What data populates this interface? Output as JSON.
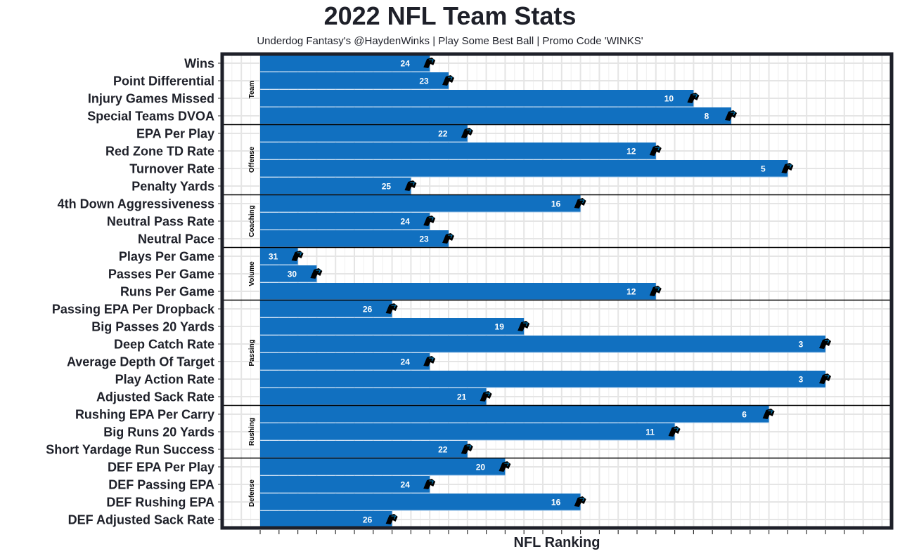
{
  "chart_data": {
    "type": "bar",
    "orientation": "horizontal",
    "title": "2022 NFL Team Stats",
    "subtitle": "Underdog Fantasy's @HaydenWinks | Play Some Best Ball | Promo Code 'WINKS'",
    "xlabel": "NFL Ranking",
    "ylabel": "",
    "bar_color": "#1170c0",
    "rank_count": 32,
    "groups": [
      {
        "name": "Team",
        "rows": [
          {
            "label": "Wins",
            "rank": 24
          },
          {
            "label": "Point Differential",
            "rank": 23
          },
          {
            "label": "Injury Games Missed",
            "rank": 10
          },
          {
            "label": "Special Teams DVOA",
            "rank": 8
          }
        ]
      },
      {
        "name": "Offense",
        "rows": [
          {
            "label": "EPA Per Play",
            "rank": 22
          },
          {
            "label": "Red Zone TD Rate",
            "rank": 12
          },
          {
            "label": "Turnover Rate",
            "rank": 5
          },
          {
            "label": "Penalty Yards",
            "rank": 25
          }
        ]
      },
      {
        "name": "Coaching",
        "rows": [
          {
            "label": "4th Down Aggressiveness",
            "rank": 16
          },
          {
            "label": "Neutral Pass Rate",
            "rank": 24
          },
          {
            "label": "Neutral Pace",
            "rank": 23
          }
        ]
      },
      {
        "name": "Volume",
        "rows": [
          {
            "label": "Plays Per Game",
            "rank": 31
          },
          {
            "label": "Passes Per Game",
            "rank": 30
          },
          {
            "label": "Runs Per Game",
            "rank": 12
          }
        ]
      },
      {
        "name": "Passing",
        "rows": [
          {
            "label": "Passing EPA Per Dropback",
            "rank": 26
          },
          {
            "label": "Big Passes 20 Yards",
            "rank": 19
          },
          {
            "label": "Deep Catch Rate",
            "rank": 3
          },
          {
            "label": "Average Depth Of Target",
            "rank": 24
          },
          {
            "label": "Play Action Rate",
            "rank": 3
          },
          {
            "label": "Adjusted Sack Rate",
            "rank": 21
          }
        ]
      },
      {
        "name": "Rushing",
        "rows": [
          {
            "label": "Rushing EPA Per Carry",
            "rank": 6
          },
          {
            "label": "Big Runs 20 Yards",
            "rank": 11
          },
          {
            "label": "Short Yardage Run Success",
            "rank": 22
          }
        ]
      },
      {
        "name": "Defense",
        "rows": [
          {
            "label": "DEF EPA Per Play",
            "rank": 20
          },
          {
            "label": "DEF Passing EPA",
            "rank": 24
          },
          {
            "label": "DEF Rushing EPA",
            "rank": 16
          },
          {
            "label": "DEF Adjusted Sack Rate",
            "rank": 26
          }
        ]
      }
    ]
  }
}
